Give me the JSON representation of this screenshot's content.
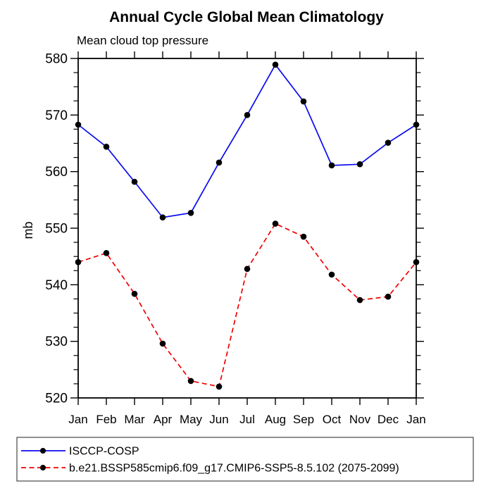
{
  "title": "Annual Cycle Global Mean Climatology",
  "subtitle": "Mean cloud top pressure",
  "chart_data": {
    "type": "line",
    "categories": [
      "Jan",
      "Feb",
      "Mar",
      "Apr",
      "May",
      "Jun",
      "Jul",
      "Aug",
      "Sep",
      "Oct",
      "Nov",
      "Dec",
      "Jan"
    ],
    "xlabel": "",
    "ylabel": "mb",
    "ylim": [
      520,
      580
    ],
    "ytick_step": 10,
    "yminor_step": 2.5,
    "ytick_labels": [
      "520",
      "530",
      "540",
      "550",
      "560",
      "570",
      "580"
    ],
    "grid": false,
    "legend_position": "bottom-left-box",
    "series": [
      {
        "name": "ISCCP-COSP",
        "color": "#0a0af0",
        "line_style": "solid",
        "marker": "filled-circle",
        "marker_color": "#000000",
        "values": [
          568.3,
          564.4,
          558.2,
          551.9,
          552.7,
          561.6,
          570.0,
          578.9,
          572.4,
          561.1,
          561.3,
          565.1,
          568.3
        ]
      },
      {
        "name": "b.e21.BSSP585cmip6.f09_g17.CMIP6-SSP5-8.5.102 (2075-2099)",
        "color": "#f00000",
        "line_style": "dashed",
        "marker": "filled-circle",
        "marker_color": "#000000",
        "values": [
          544.0,
          545.6,
          538.4,
          529.6,
          523.0,
          522.0,
          542.8,
          550.8,
          548.5,
          541.8,
          537.3,
          537.9,
          544.0
        ]
      }
    ]
  },
  "colors": {
    "axis": "#000000",
    "text": "#000000",
    "background": "#ffffff",
    "legend_border": "#555555"
  }
}
